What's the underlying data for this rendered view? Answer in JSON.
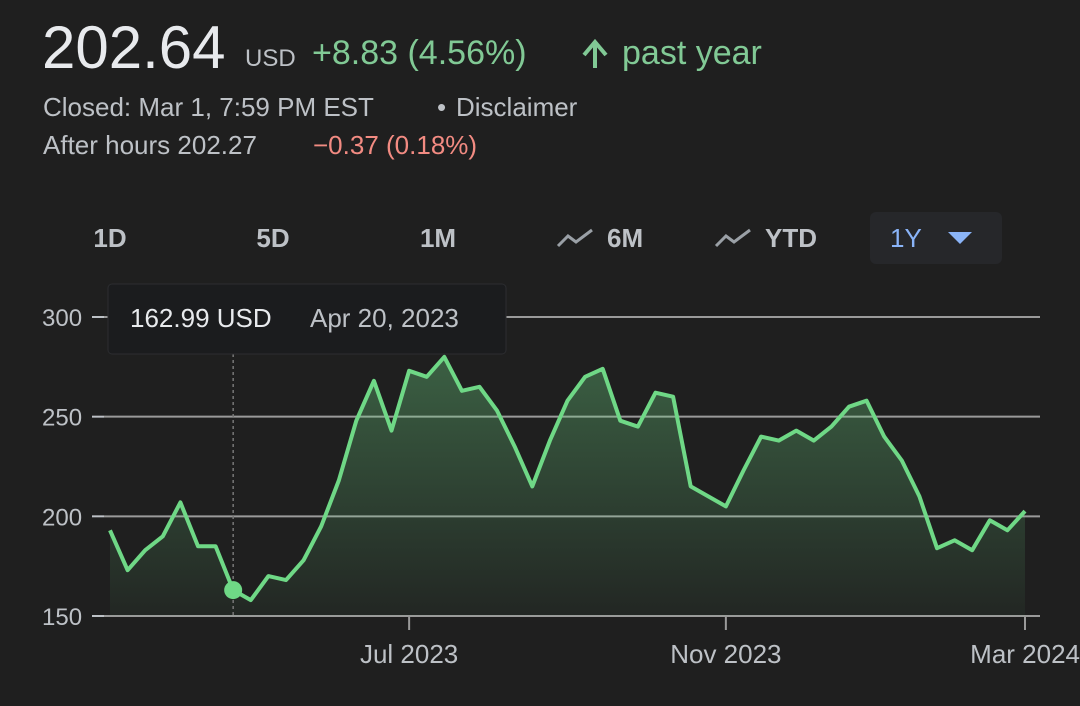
{
  "quote": {
    "price": "202.64",
    "currency": "USD",
    "change": "+8.83 (4.56%)",
    "period": "past year",
    "closed": "Closed: Mar 1, 7:59 PM EST",
    "separator": "•",
    "disclaimer": "Disclaimer",
    "after_hours": "After hours 202.27",
    "after_hours_change": "−0.37 (0.18%)"
  },
  "ranges": [
    "1D",
    "5D",
    "1M",
    "6M",
    "YTD",
    "1Y"
  ],
  "chart_data": {
    "type": "line",
    "categories": [
      null,
      null,
      null,
      null,
      null,
      null,
      null,
      null,
      null,
      null,
      null,
      null,
      null,
      null,
      null,
      null,
      null,
      "Jul 2023",
      null,
      null,
      null,
      null,
      null,
      null,
      null,
      null,
      null,
      null,
      null,
      null,
      null,
      null,
      null,
      null,
      null,
      "Nov 2023",
      null,
      null,
      null,
      null,
      null,
      null,
      null,
      null,
      null,
      null,
      null,
      null,
      null,
      null,
      null,
      null,
      "Mar 2024"
    ],
    "series": [
      {
        "color": "#6fd886",
        "values": [
          193,
          173,
          183,
          190,
          207,
          185,
          185,
          162.99,
          158,
          170,
          168,
          178,
          195,
          218,
          248,
          268,
          243,
          273,
          270,
          280,
          263,
          265,
          253,
          235,
          215,
          238,
          258,
          270,
          274,
          248,
          245,
          262,
          260,
          215,
          210,
          205,
          223,
          240,
          238,
          243,
          238,
          245,
          255,
          258,
          240,
          228,
          210,
          184,
          188,
          183,
          198,
          193,
          202.64
        ]
      }
    ],
    "ylim": [
      150,
      300
    ],
    "yticks": [
      150,
      200,
      250,
      300
    ],
    "grid": true,
    "tooltip": {
      "value_label": "162.99 USD",
      "date": "Apr 20, 2023"
    }
  }
}
